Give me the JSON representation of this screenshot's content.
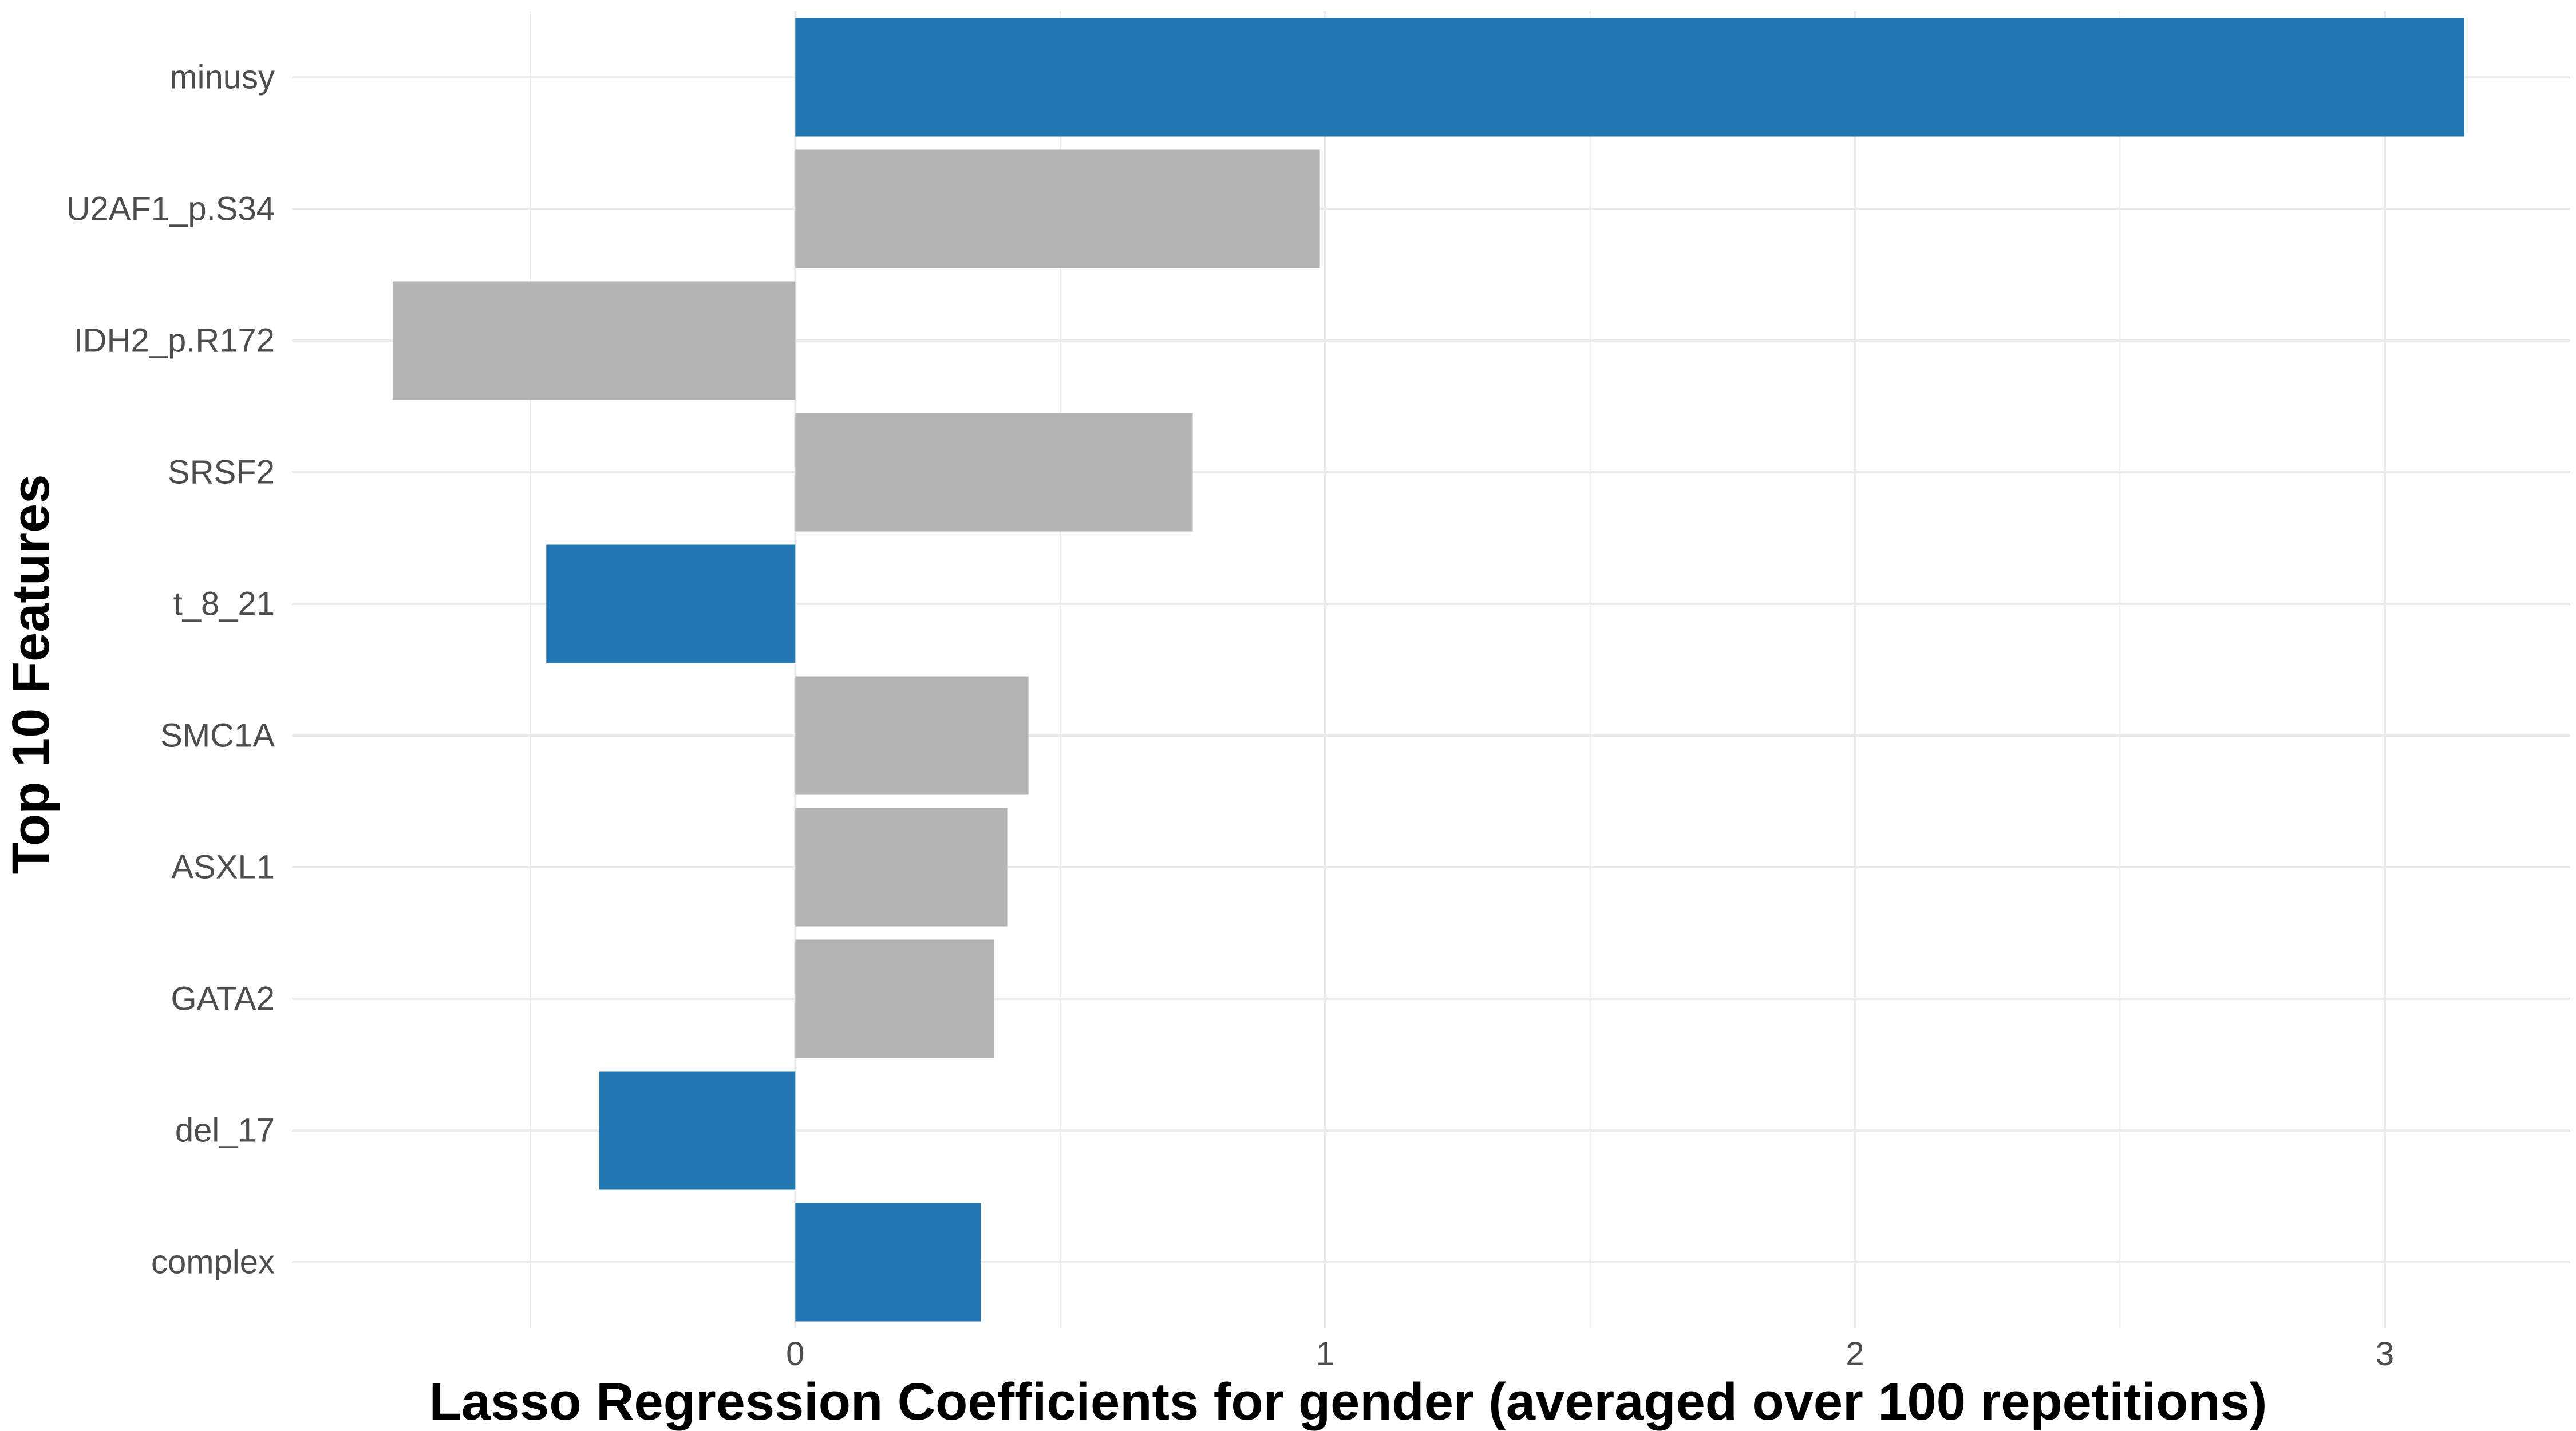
{
  "chart_data": {
    "type": "bar",
    "orientation": "horizontal",
    "xlabel": "Lasso Regression Coefficients for gender (averaged over 100 repetitions)",
    "ylabel": "Top 10 Features",
    "xlim": [
      -0.95,
      3.35
    ],
    "xticks": [
      0,
      1,
      2,
      3
    ],
    "grid": true,
    "legend": "none",
    "colors": {
      "highlight": "#2378b2",
      "default": "#b3b3b3",
      "grid": "#ebebeb",
      "tick_text": "#4d4d4d"
    },
    "categories": [
      "minusy",
      "U2AF1_p.S34",
      "IDH2_p.R172",
      "SRSF2",
      "t_8_21",
      "SMC1A",
      "ASXL1",
      "GATA2",
      "del_17",
      "complex"
    ],
    "values": [
      3.15,
      0.99,
      -0.76,
      0.75,
      -0.47,
      0.44,
      0.4,
      0.375,
      -0.37,
      0.35
    ],
    "highlighted": [
      true,
      false,
      false,
      false,
      true,
      false,
      false,
      false,
      true,
      true
    ]
  }
}
